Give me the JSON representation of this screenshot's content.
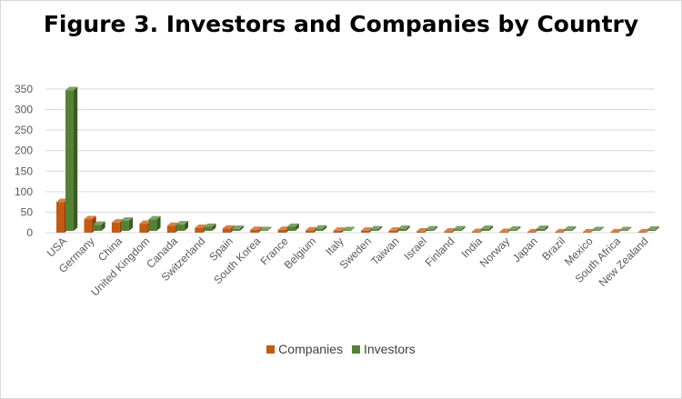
{
  "chart_data": {
    "type": "bar",
    "title": "Figure 3. Investors and Companies by Country",
    "categories": [
      "USA",
      "Germany",
      "China",
      "United Kingdom",
      "Canada",
      "Switzerland",
      "Spain",
      "South Korea",
      "France",
      "Belgium",
      "Italy",
      "Sweden",
      "Taiwan",
      "Israel",
      "Finland",
      "India",
      "Norway",
      "Japan",
      "Brazil",
      "Mexico",
      "South Africa",
      "New Zealand"
    ],
    "series": [
      {
        "name": "Companies",
        "color": "#c55a11",
        "values": [
          75,
          33,
          25,
          22,
          17,
          12,
          10,
          7,
          7,
          6,
          5,
          5,
          5,
          3,
          3,
          2,
          2,
          1,
          1,
          1,
          1,
          1
        ]
      },
      {
        "name": "Investors",
        "color": "#548235",
        "values": [
          343,
          15,
          25,
          28,
          16,
          10,
          5,
          2,
          10,
          6,
          2,
          4,
          5,
          4,
          4,
          5,
          3,
          5,
          3,
          2,
          2,
          3
        ]
      }
    ],
    "yticks": [
      "0",
      "50",
      "100",
      "150",
      "200",
      "250",
      "300",
      "350"
    ],
    "ylim": [
      0,
      350
    ],
    "grid": true,
    "legend_position": "bottom"
  }
}
